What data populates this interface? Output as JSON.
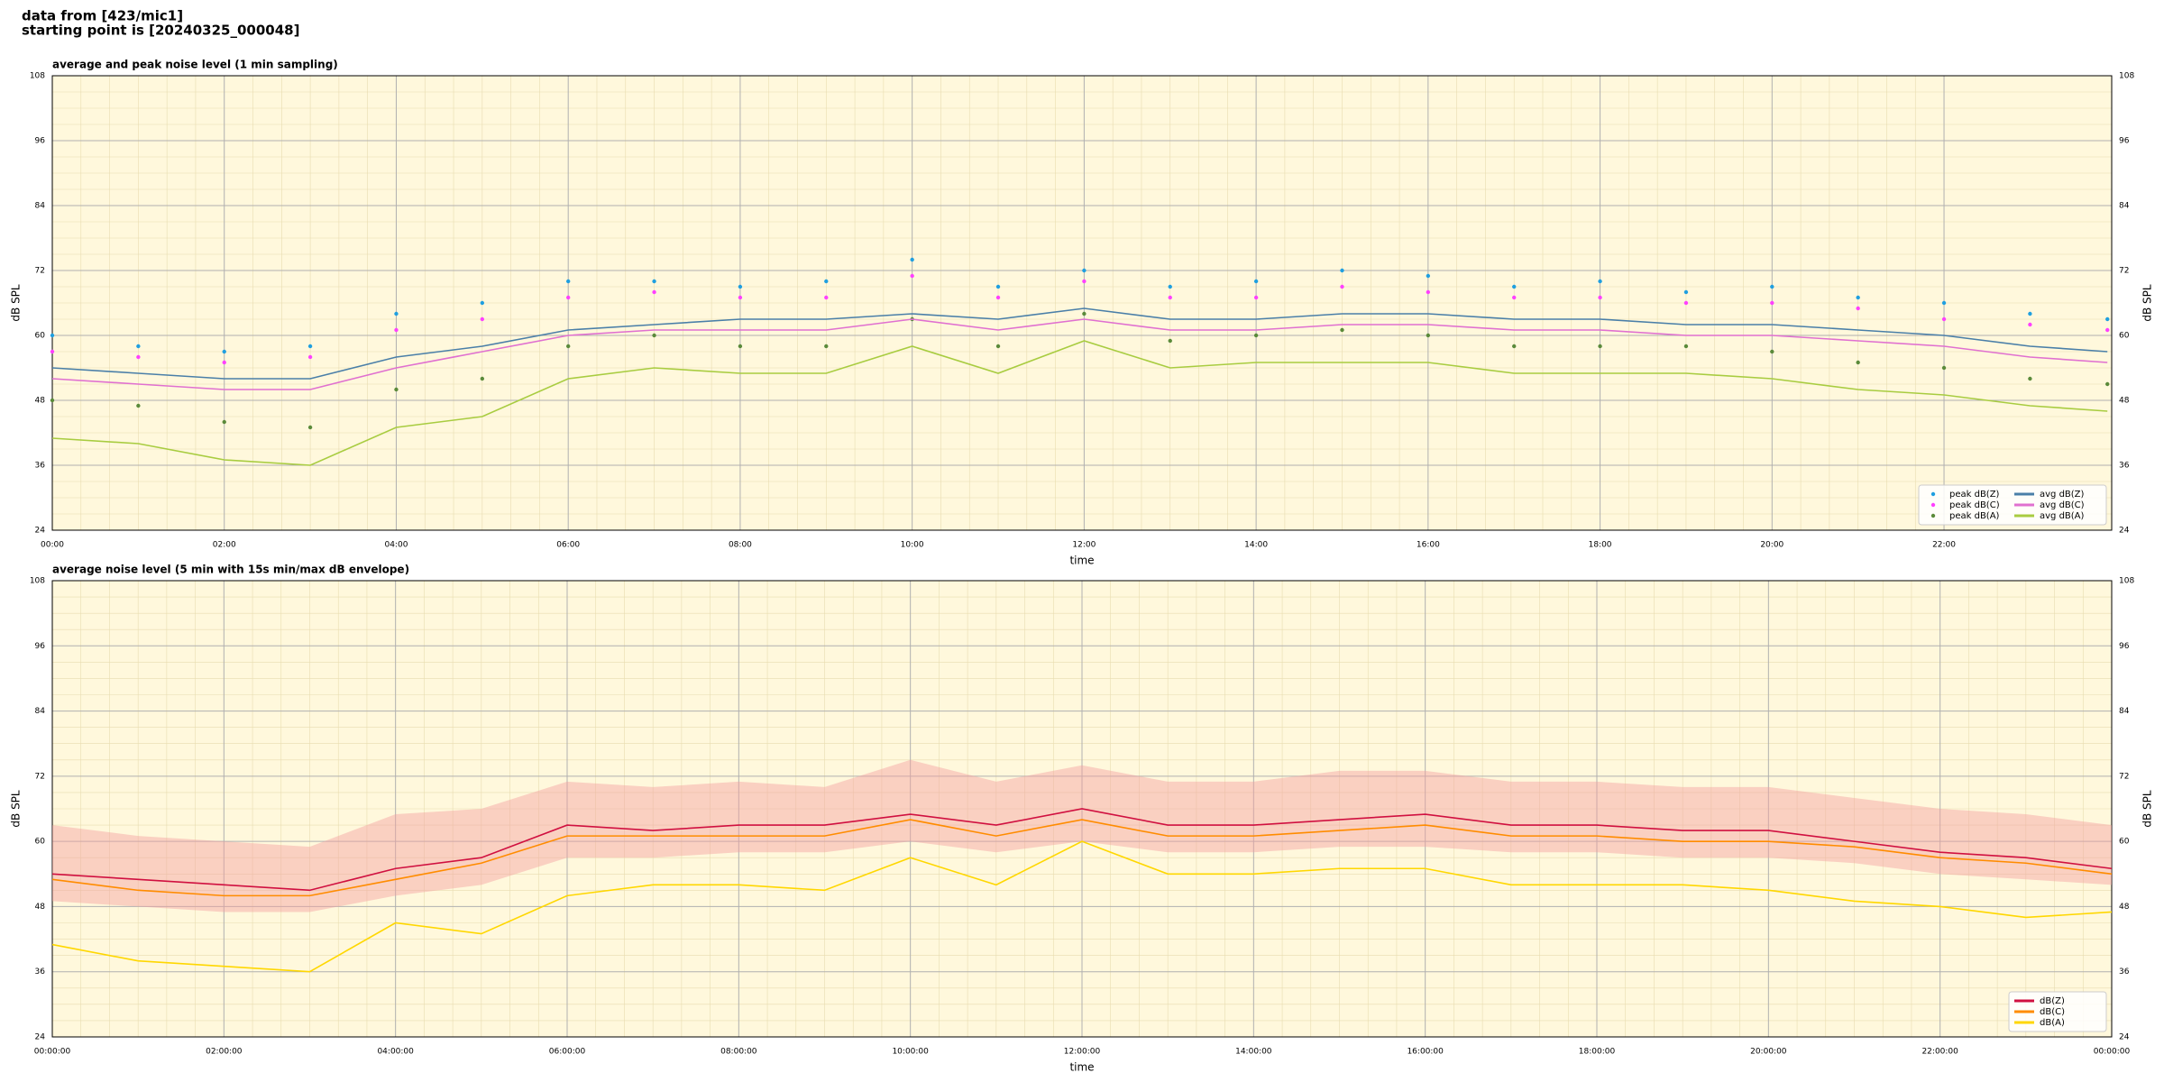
{
  "header": {
    "line1": "data from [423/mic1]",
    "line2": "starting point is [20240325_000048]"
  },
  "chart_data": [
    {
      "type": "line",
      "title": "average and peak noise level (1 min sampling)",
      "xlabel": "time",
      "ylabel": "dB SPL",
      "x": [
        0,
        1,
        2,
        3,
        4,
        5,
        6,
        7,
        8,
        9,
        10,
        11,
        12,
        13,
        14,
        15,
        16,
        17,
        18,
        19,
        20,
        21,
        22,
        23,
        23.9
      ],
      "xlim": [
        0,
        23.95
      ],
      "ylim": [
        24,
        108
      ],
      "yticks": [
        24,
        36,
        48,
        60,
        72,
        84,
        96,
        108
      ],
      "xticks": [
        {
          "value": 0,
          "label": "00:00"
        },
        {
          "value": 2,
          "label": "02:00"
        },
        {
          "value": 4,
          "label": "04:00"
        },
        {
          "value": 6,
          "label": "06:00"
        },
        {
          "value": 8,
          "label": "08:00"
        },
        {
          "value": 10,
          "label": "10:00"
        },
        {
          "value": 12,
          "label": "12:00"
        },
        {
          "value": 14,
          "label": "14:00"
        },
        {
          "value": 16,
          "label": "16:00"
        },
        {
          "value": 18,
          "label": "18:00"
        },
        {
          "value": 20,
          "label": "20:00"
        },
        {
          "value": 22,
          "label": "22:00"
        }
      ],
      "grid": true,
      "minor_grid": true,
      "legend": "lower right",
      "legend_columns": 2,
      "background": "#fff8dc",
      "series": [
        {
          "name": "peak dB(Z)",
          "type": "scatter",
          "color": "#1f9fe0",
          "values": [
            60,
            58,
            57,
            58,
            64,
            66,
            70,
            70,
            69,
            70,
            74,
            69,
            72,
            69,
            70,
            72,
            71,
            69,
            70,
            68,
            69,
            67,
            66,
            64,
            63
          ]
        },
        {
          "name": "peak dB(C)",
          "type": "scatter",
          "color": "#ff40ff",
          "values": [
            57,
            56,
            55,
            56,
            61,
            63,
            67,
            68,
            67,
            67,
            71,
            67,
            70,
            67,
            67,
            69,
            68,
            67,
            67,
            66,
            66,
            65,
            63,
            62,
            61
          ]
        },
        {
          "name": "peak dB(A)",
          "type": "scatter",
          "color": "#5a8a3a",
          "values": [
            48,
            47,
            44,
            43,
            50,
            52,
            58,
            60,
            58,
            58,
            63,
            58,
            64,
            59,
            60,
            61,
            60,
            58,
            58,
            58,
            57,
            55,
            54,
            52,
            51
          ]
        },
        {
          "name": "avg dB(Z)",
          "type": "line",
          "color": "#4a7fa8",
          "values": [
            54,
            53,
            52,
            52,
            56,
            58,
            61,
            62,
            63,
            63,
            64,
            63,
            65,
            63,
            63,
            64,
            64,
            63,
            63,
            62,
            62,
            61,
            60,
            58,
            57
          ]
        },
        {
          "name": "avg dB(C)",
          "type": "line",
          "color": "#e070d0",
          "values": [
            52,
            51,
            50,
            50,
            54,
            57,
            60,
            61,
            61,
            61,
            63,
            61,
            63,
            61,
            61,
            62,
            62,
            61,
            61,
            60,
            60,
            59,
            58,
            56,
            55
          ]
        },
        {
          "name": "avg dB(A)",
          "type": "line",
          "color": "#a8cc40",
          "values": [
            41,
            40,
            37,
            36,
            43,
            45,
            52,
            54,
            53,
            53,
            58,
            53,
            59,
            54,
            55,
            55,
            55,
            53,
            53,
            53,
            52,
            50,
            49,
            47,
            46
          ]
        }
      ]
    },
    {
      "type": "line",
      "title": "average noise level (5 min with 15s min/max dB envelope)",
      "xlabel": "time",
      "ylabel": "dB SPL",
      "x": [
        0,
        1,
        2,
        3,
        4,
        5,
        6,
        7,
        8,
        9,
        10,
        11,
        12,
        13,
        14,
        15,
        16,
        17,
        18,
        19,
        20,
        21,
        22,
        23,
        24
      ],
      "xlim": [
        0,
        24
      ],
      "ylim": [
        24,
        108
      ],
      "yticks": [
        24,
        36,
        48,
        60,
        72,
        84,
        96,
        108
      ],
      "xticks": [
        {
          "value": 0,
          "label": "00:00:00"
        },
        {
          "value": 2,
          "label": "02:00:00"
        },
        {
          "value": 4,
          "label": "04:00:00"
        },
        {
          "value": 6,
          "label": "06:00:00"
        },
        {
          "value": 8,
          "label": "08:00:00"
        },
        {
          "value": 10,
          "label": "10:00:00"
        },
        {
          "value": 12,
          "label": "12:00:00"
        },
        {
          "value": 14,
          "label": "14:00:00"
        },
        {
          "value": 16,
          "label": "16:00:00"
        },
        {
          "value": 18,
          "label": "18:00:00"
        },
        {
          "value": 20,
          "label": "20:00:00"
        },
        {
          "value": 22,
          "label": "22:00:00"
        },
        {
          "value": 24,
          "label": "00:00:00"
        }
      ],
      "grid": true,
      "minor_grid": true,
      "legend": "lower right",
      "legend_columns": 1,
      "background": "#fff8dc",
      "envelope": {
        "color": "#f4a0a0",
        "min": [
          49,
          48,
          47,
          47,
          50,
          52,
          57,
          57,
          58,
          58,
          60,
          58,
          60,
          58,
          58,
          59,
          59,
          58,
          58,
          57,
          57,
          56,
          54,
          53,
          52
        ],
        "max": [
          63,
          61,
          60,
          59,
          65,
          66,
          71,
          70,
          71,
          70,
          75,
          71,
          74,
          71,
          71,
          73,
          73,
          71,
          71,
          70,
          70,
          68,
          66,
          65,
          63
        ]
      },
      "series": [
        {
          "name": "dB(Z)",
          "type": "line",
          "color": "#d01040",
          "values": [
            54,
            53,
            52,
            51,
            55,
            57,
            63,
            62,
            63,
            63,
            65,
            63,
            66,
            63,
            63,
            64,
            65,
            63,
            63,
            62,
            62,
            60,
            58,
            57,
            55
          ]
        },
        {
          "name": "dB(C)",
          "type": "line",
          "color": "#ff8c00",
          "values": [
            53,
            51,
            50,
            50,
            53,
            56,
            61,
            61,
            61,
            61,
            64,
            61,
            64,
            61,
            61,
            62,
            63,
            61,
            61,
            60,
            60,
            59,
            57,
            56,
            54
          ]
        },
        {
          "name": "dB(A)",
          "type": "line",
          "color": "#ffd700",
          "values": [
            41,
            38,
            37,
            36,
            45,
            43,
            50,
            52,
            52,
            51,
            57,
            52,
            60,
            54,
            54,
            55,
            55,
            52,
            52,
            52,
            51,
            49,
            48,
            46,
            47
          ]
        }
      ]
    }
  ]
}
